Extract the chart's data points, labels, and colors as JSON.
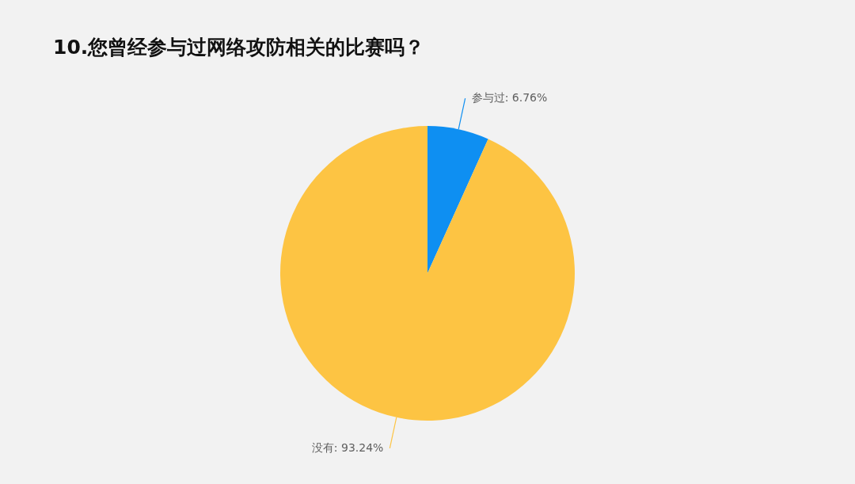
{
  "chart_data": {
    "type": "pie",
    "title": "10.您曾经参与过网络攻防相关的比赛吗？",
    "categories": [
      "参与过",
      "没有"
    ],
    "values": [
      6.76,
      93.24
    ],
    "colors": [
      "#0e8ff2",
      "#fdc443"
    ],
    "value_labels": [
      "6.76%",
      "93.24%"
    ]
  }
}
